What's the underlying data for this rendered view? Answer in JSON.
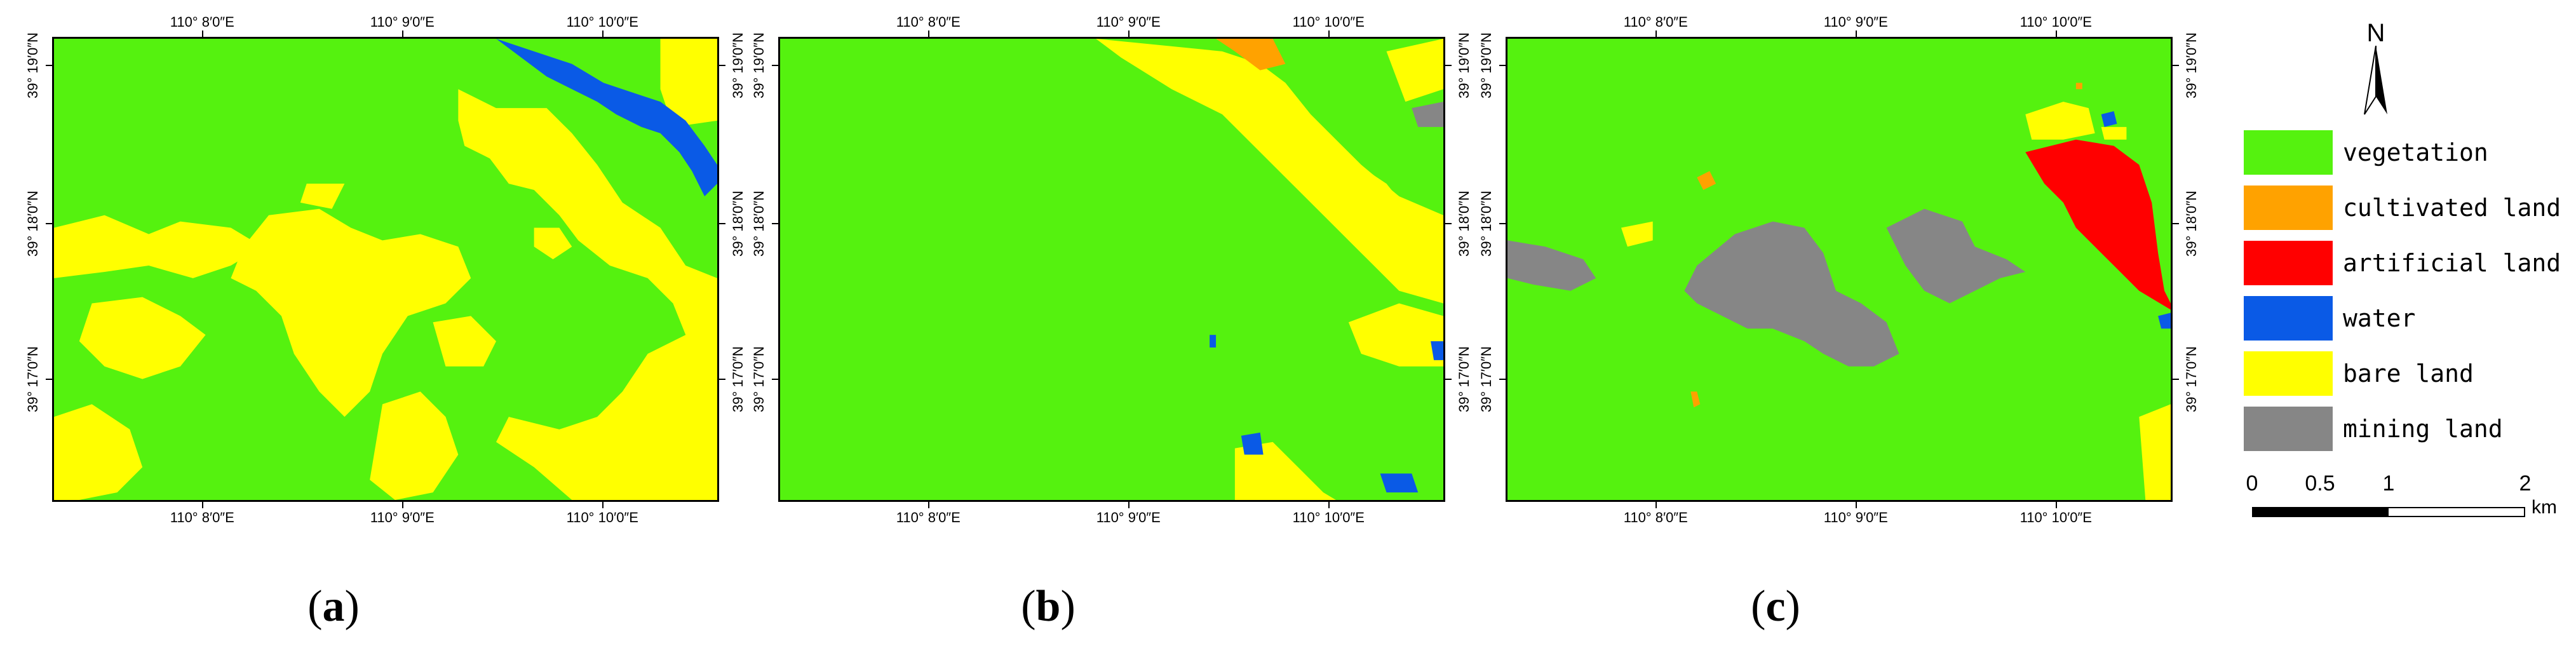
{
  "colors": {
    "vegetation": "#55f20f",
    "cultivated_land": "#ffa200",
    "artificial_land": "#ff0000",
    "water": "#0a5ae6",
    "bare_land": "#ffff00",
    "mining_land": "#868686"
  },
  "panels": [
    {
      "label": "a",
      "top_ticks": [
        "110° 8′0″E",
        "110° 9′0″E",
        "110° 10′0″E"
      ],
      "bottom_ticks": [
        "110° 8′0″E",
        "110° 9′0″E",
        "110° 10′0″E"
      ],
      "left_ticks": [
        "39° 19′0″N",
        "39° 18′0″N",
        "39° 17′0″N"
      ],
      "right_ticks": [
        "39° 19′0″N",
        "39° 18′0″N",
        "39° 17′0″N"
      ]
    },
    {
      "label": "b",
      "top_ticks": [
        "110° 8′0″E",
        "110° 9′0″E",
        "110° 10′0″E"
      ],
      "bottom_ticks": [
        "110° 8′0″E",
        "110° 9′0″E",
        "110° 10′0″E"
      ],
      "left_ticks": [
        "39° 19′0″N",
        "39° 18′0″N",
        "39° 17′0″N"
      ],
      "right_ticks": [
        "39° 19′0″N",
        "39° 18′0″N",
        "39° 17′0″N"
      ]
    },
    {
      "label": "c",
      "top_ticks": [
        "110° 8′0″E",
        "110° 9′0″E",
        "110° 10′0″E"
      ],
      "bottom_ticks": [
        "110° 8′0″E",
        "110° 9′0″E",
        "110° 10′0″E"
      ],
      "left_ticks": [
        "39° 19′0″N",
        "39° 18′0″N",
        "39° 17′0″N"
      ],
      "right_ticks": [
        "39° 19′0″N",
        "39° 18′0″N",
        "39° 17′0″N"
      ]
    }
  ],
  "legend": {
    "items": [
      {
        "key": "vegetation",
        "label": "vegetation"
      },
      {
        "key": "cultivated_land",
        "label": "cultivated land"
      },
      {
        "key": "artificial_land",
        "label": "artificial land"
      },
      {
        "key": "water",
        "label": "water"
      },
      {
        "key": "bare_land",
        "label": "bare land"
      },
      {
        "key": "mining_land",
        "label": "mining land"
      }
    ],
    "north_label": "N",
    "scale_labels": [
      "0",
      "0.5",
      "1",
      "2"
    ],
    "scale_unit": "km"
  }
}
